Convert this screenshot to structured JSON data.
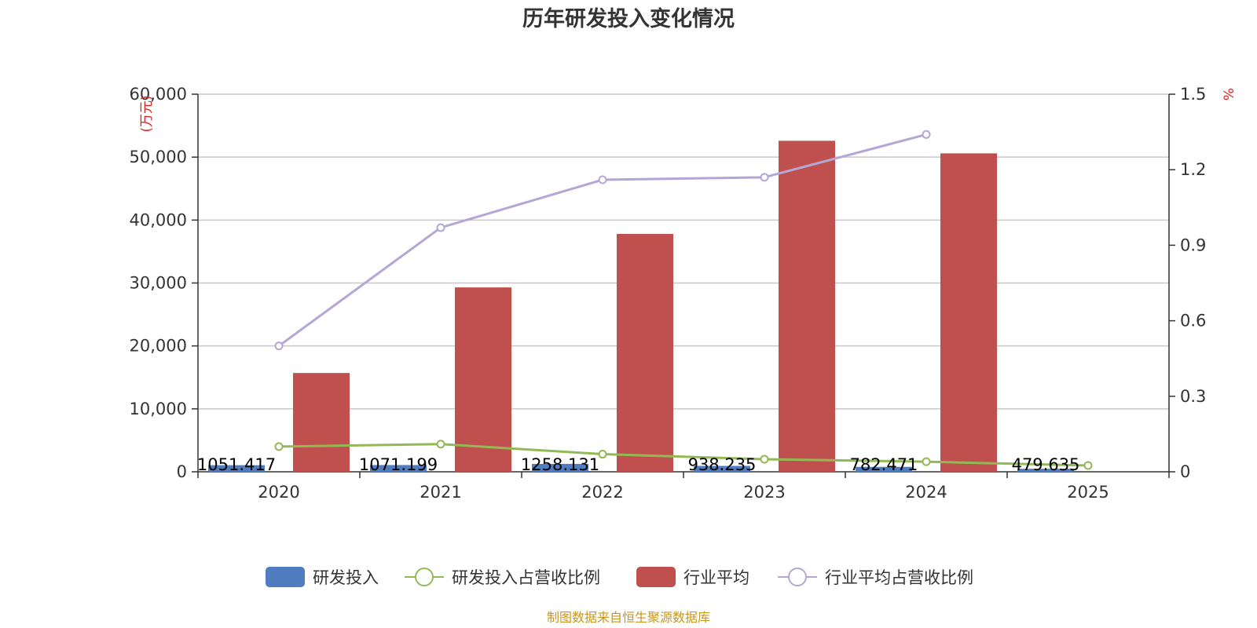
{
  "chart_data": {
    "type": "bar",
    "title": "历年研发投入变化情况",
    "categories": [
      "2020",
      "2021",
      "2022",
      "2023",
      "2024",
      "2025"
    ],
    "left_axis": {
      "unit": "(万元)",
      "range": [
        0,
        60000
      ],
      "ticks": [
        0,
        10000,
        20000,
        30000,
        40000,
        50000,
        60000
      ],
      "tick_labels": [
        "0",
        "10,000",
        "20,000",
        "30,000",
        "40,000",
        "50,000",
        "60,000"
      ]
    },
    "right_axis": {
      "unit": "%",
      "range": [
        0,
        1.5
      ],
      "ticks": [
        0,
        0.3,
        0.6,
        0.9,
        1.2,
        1.5
      ],
      "tick_labels": [
        "0",
        "0.3",
        "0.6",
        "0.9",
        "1.2",
        "1.5"
      ]
    },
    "grid": true,
    "series": [
      {
        "name": "研发投入",
        "type": "bar",
        "axis": "left",
        "color": "#4f7dbf",
        "values": [
          1051.417,
          1071.199,
          1258.131,
          938.235,
          782.471,
          479.635
        ],
        "labels": [
          "1051.417",
          "1071.199",
          "1258.131",
          "938.235",
          "782.471",
          "479.635"
        ]
      },
      {
        "name": "研发投入占营收比例",
        "type": "line",
        "axis": "right",
        "color": "#93b956",
        "values": [
          0.1,
          0.11,
          0.07,
          0.05,
          0.04,
          0.025
        ]
      },
      {
        "name": "行业平均",
        "type": "bar",
        "axis": "left",
        "color": "#c0504d",
        "values": [
          15700,
          29300,
          37800,
          52600,
          50600,
          null
        ]
      },
      {
        "name": "行业平均占营收比例",
        "type": "line",
        "axis": "right",
        "color": "#b4a7d6",
        "values": [
          0.5,
          0.97,
          1.16,
          1.17,
          1.34,
          null
        ]
      }
    ],
    "legend_position": "bottom"
  },
  "source_note": "制图数据来自恒生聚源数据库"
}
